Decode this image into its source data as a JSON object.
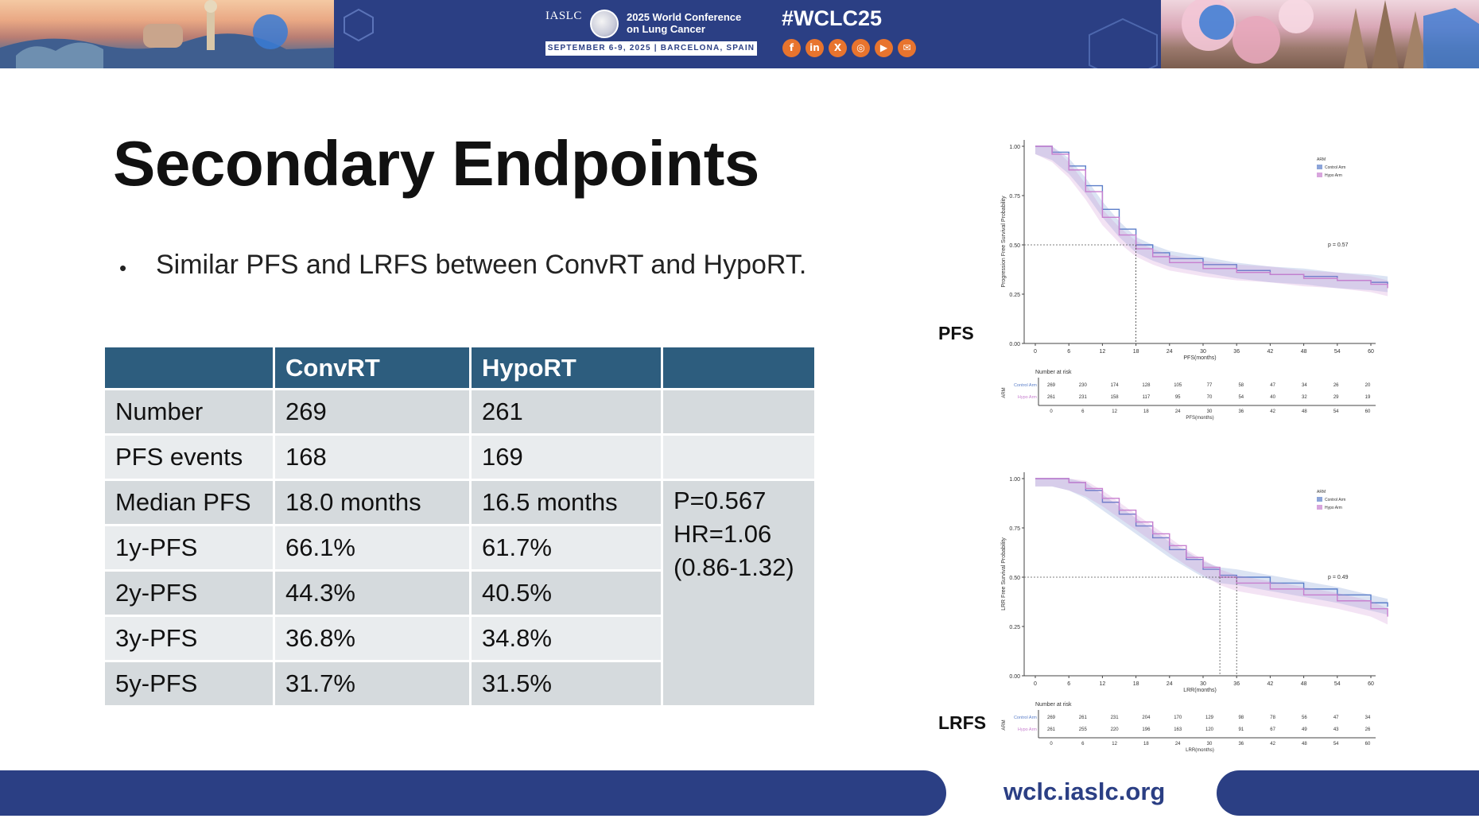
{
  "header": {
    "org": "IASLC",
    "conference_line1": "2025 World Conference",
    "conference_line2": "on Lung Cancer",
    "dates": "SEPTEMBER 6-9, 2025  |  BARCELONA, SPAIN",
    "hashtag": "#WCLC25",
    "social_icons": [
      "facebook-icon",
      "linkedin-icon",
      "x-icon",
      "instagram-icon",
      "youtube-icon",
      "wechat-icon"
    ],
    "social_glyphs": [
      "f",
      "in",
      "X",
      "◎",
      "▶",
      "✉"
    ]
  },
  "slide": {
    "title": "Secondary Endpoints",
    "bullet": "Similar PFS and LRFS between ConvRT and HypoRT."
  },
  "table": {
    "headers": [
      "",
      "ConvRT",
      "HypoRT",
      ""
    ],
    "rows": [
      [
        "Number",
        "269",
        "261"
      ],
      [
        "PFS events",
        "168",
        "169"
      ],
      [
        "Median PFS",
        "18.0 months",
        "16.5 months"
      ],
      [
        "1y-PFS",
        "66.1%",
        "61.7%"
      ],
      [
        "2y-PFS",
        "44.3%",
        "40.5%"
      ],
      [
        "3y-PFS",
        "36.8%",
        "34.8%"
      ],
      [
        "5y-PFS",
        "31.7%",
        "31.5%"
      ]
    ],
    "stat_lines": [
      "P=0.567",
      "HR=1.06",
      "(0.86-1.32)"
    ]
  },
  "plots": {
    "pfs_label": "PFS",
    "lrfs_label": "LRFS"
  },
  "chart_data": [
    {
      "type": "line",
      "ylabel": "Progression Free Survival Probability",
      "xlabel": "PFS(months)",
      "x_ticks": [
        0,
        6,
        12,
        18,
        24,
        30,
        36,
        42,
        48,
        54,
        60
      ],
      "y_ticks": [
        "0.00",
        "0.25",
        "0.50",
        "0.75",
        "1.00"
      ],
      "ylim": [
        0,
        1
      ],
      "xlim": [
        0,
        60
      ],
      "legend_title": "ARM",
      "legend_position": "top-right",
      "pvalue": "p = 0.57",
      "series": [
        {
          "name": "Control Arm",
          "color": "#5b7ec9",
          "x": [
            0,
            3,
            6,
            9,
            12,
            15,
            18,
            21,
            24,
            30,
            36,
            42,
            48,
            54,
            60,
            63
          ],
          "y": [
            1.0,
            0.97,
            0.9,
            0.8,
            0.68,
            0.58,
            0.5,
            0.46,
            0.43,
            0.4,
            0.37,
            0.35,
            0.34,
            0.32,
            0.31,
            0.3
          ]
        },
        {
          "name": "Hypo Arm",
          "color": "#c77fcf",
          "x": [
            0,
            3,
            6,
            9,
            12,
            15,
            18,
            21,
            24,
            30,
            36,
            42,
            48,
            54,
            60,
            63
          ],
          "y": [
            1.0,
            0.96,
            0.88,
            0.77,
            0.64,
            0.55,
            0.48,
            0.44,
            0.41,
            0.38,
            0.36,
            0.35,
            0.33,
            0.32,
            0.3,
            0.28
          ]
        }
      ],
      "risk_table": {
        "title": "Number at risk",
        "rows": [
          {
            "name": "Control Arm",
            "values": [
              "269",
              "230",
              "174",
              "128",
              "105",
              "77",
              "58",
              "47",
              "34",
              "26",
              "20"
            ]
          },
          {
            "name": "Hypo Arm",
            "values": [
              "261",
              "231",
              "158",
              "117",
              "95",
              "70",
              "54",
              "40",
              "32",
              "29",
              "19"
            ]
          }
        ],
        "xlabel": "PFS(months)",
        "ylabel": "ARM"
      }
    },
    {
      "type": "line",
      "ylabel": "LRR Free Survival Probability",
      "xlabel": "LRR(months)",
      "x_ticks": [
        0,
        6,
        12,
        18,
        24,
        30,
        36,
        42,
        48,
        54,
        60
      ],
      "y_ticks": [
        "0.00",
        "0.25",
        "0.50",
        "0.75",
        "1.00"
      ],
      "ylim": [
        0,
        1
      ],
      "xlim": [
        0,
        60
      ],
      "legend_title": "ARM",
      "legend_position": "top-right",
      "pvalue": "p = 0.49",
      "series": [
        {
          "name": "Control Arm",
          "color": "#5b7ec9",
          "x": [
            0,
            3,
            6,
            9,
            12,
            15,
            18,
            21,
            24,
            27,
            30,
            33,
            36,
            42,
            48,
            54,
            60,
            63
          ],
          "y": [
            1.0,
            1.0,
            0.98,
            0.94,
            0.88,
            0.82,
            0.76,
            0.7,
            0.64,
            0.59,
            0.54,
            0.51,
            0.5,
            0.47,
            0.44,
            0.41,
            0.37,
            0.35
          ]
        },
        {
          "name": "Hypo Arm",
          "color": "#c77fcf",
          "x": [
            0,
            3,
            6,
            9,
            12,
            15,
            18,
            21,
            24,
            27,
            30,
            33,
            36,
            42,
            48,
            54,
            60,
            63
          ],
          "y": [
            1.0,
            1.0,
            0.98,
            0.95,
            0.9,
            0.84,
            0.78,
            0.72,
            0.66,
            0.6,
            0.55,
            0.5,
            0.47,
            0.44,
            0.41,
            0.38,
            0.34,
            0.3
          ]
        }
      ],
      "risk_table": {
        "title": "Number at risk",
        "rows": [
          {
            "name": "Control Arm",
            "values": [
              "269",
              "261",
              "231",
              "204",
              "170",
              "129",
              "98",
              "78",
              "56",
              "47",
              "34"
            ]
          },
          {
            "name": "Hypo Arm",
            "values": [
              "261",
              "255",
              "220",
              "196",
              "163",
              "120",
              "91",
              "67",
              "49",
              "43",
              "26"
            ]
          }
        ],
        "xlabel": "LRR(months)",
        "ylabel": "ARM"
      }
    }
  ],
  "footer": {
    "url": "wclc.iaslc.org"
  }
}
